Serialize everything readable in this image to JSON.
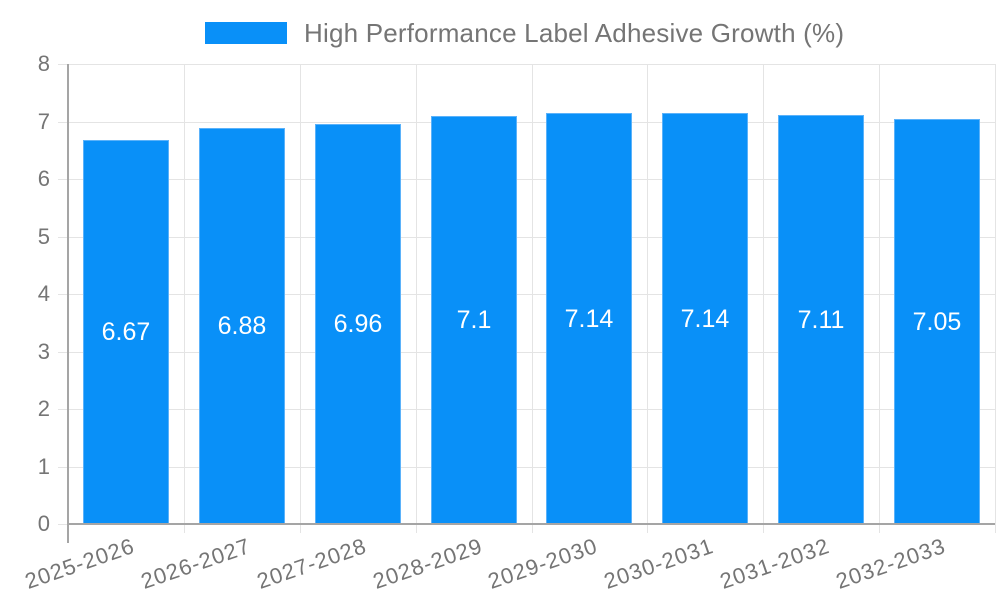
{
  "chart_data": {
    "type": "bar",
    "title": "High Performance Label Adhesive Growth (%)",
    "legend_position": "top",
    "categories": [
      "2025-2026",
      "2026-2027",
      "2027-2028",
      "2028-2029",
      "2029-2030",
      "2030-2031",
      "2031-2032",
      "2032-2033"
    ],
    "series": [
      {
        "name": "High Performance Label Adhesive Growth (%)",
        "values": [
          6.67,
          6.88,
          6.96,
          7.1,
          7.14,
          7.14,
          7.11,
          7.05
        ],
        "value_labels": [
          "6.67",
          "6.88",
          "6.96",
          "7.1",
          "7.14",
          "7.14",
          "7.11",
          "7.05"
        ]
      }
    ],
    "xlabel": "",
    "ylabel": "",
    "ylim": [
      0,
      8
    ],
    "yticks": [
      0,
      1,
      2,
      3,
      4,
      5,
      6,
      7,
      8
    ],
    "y_tick_labels": [
      "0",
      "1",
      "2",
      "3",
      "4",
      "5",
      "6",
      "7",
      "8"
    ],
    "grid": true,
    "x_label_rotation_deg": -19,
    "colors": {
      "bar": "#0990f8",
      "bar_border": "#5bb2fa",
      "axis": "#a5a5a5",
      "grid": "#e4e4e4",
      "tick_label": "#757575",
      "bar_value_label": "#ffffff",
      "title": "#757575",
      "background": "#ffffff"
    }
  }
}
